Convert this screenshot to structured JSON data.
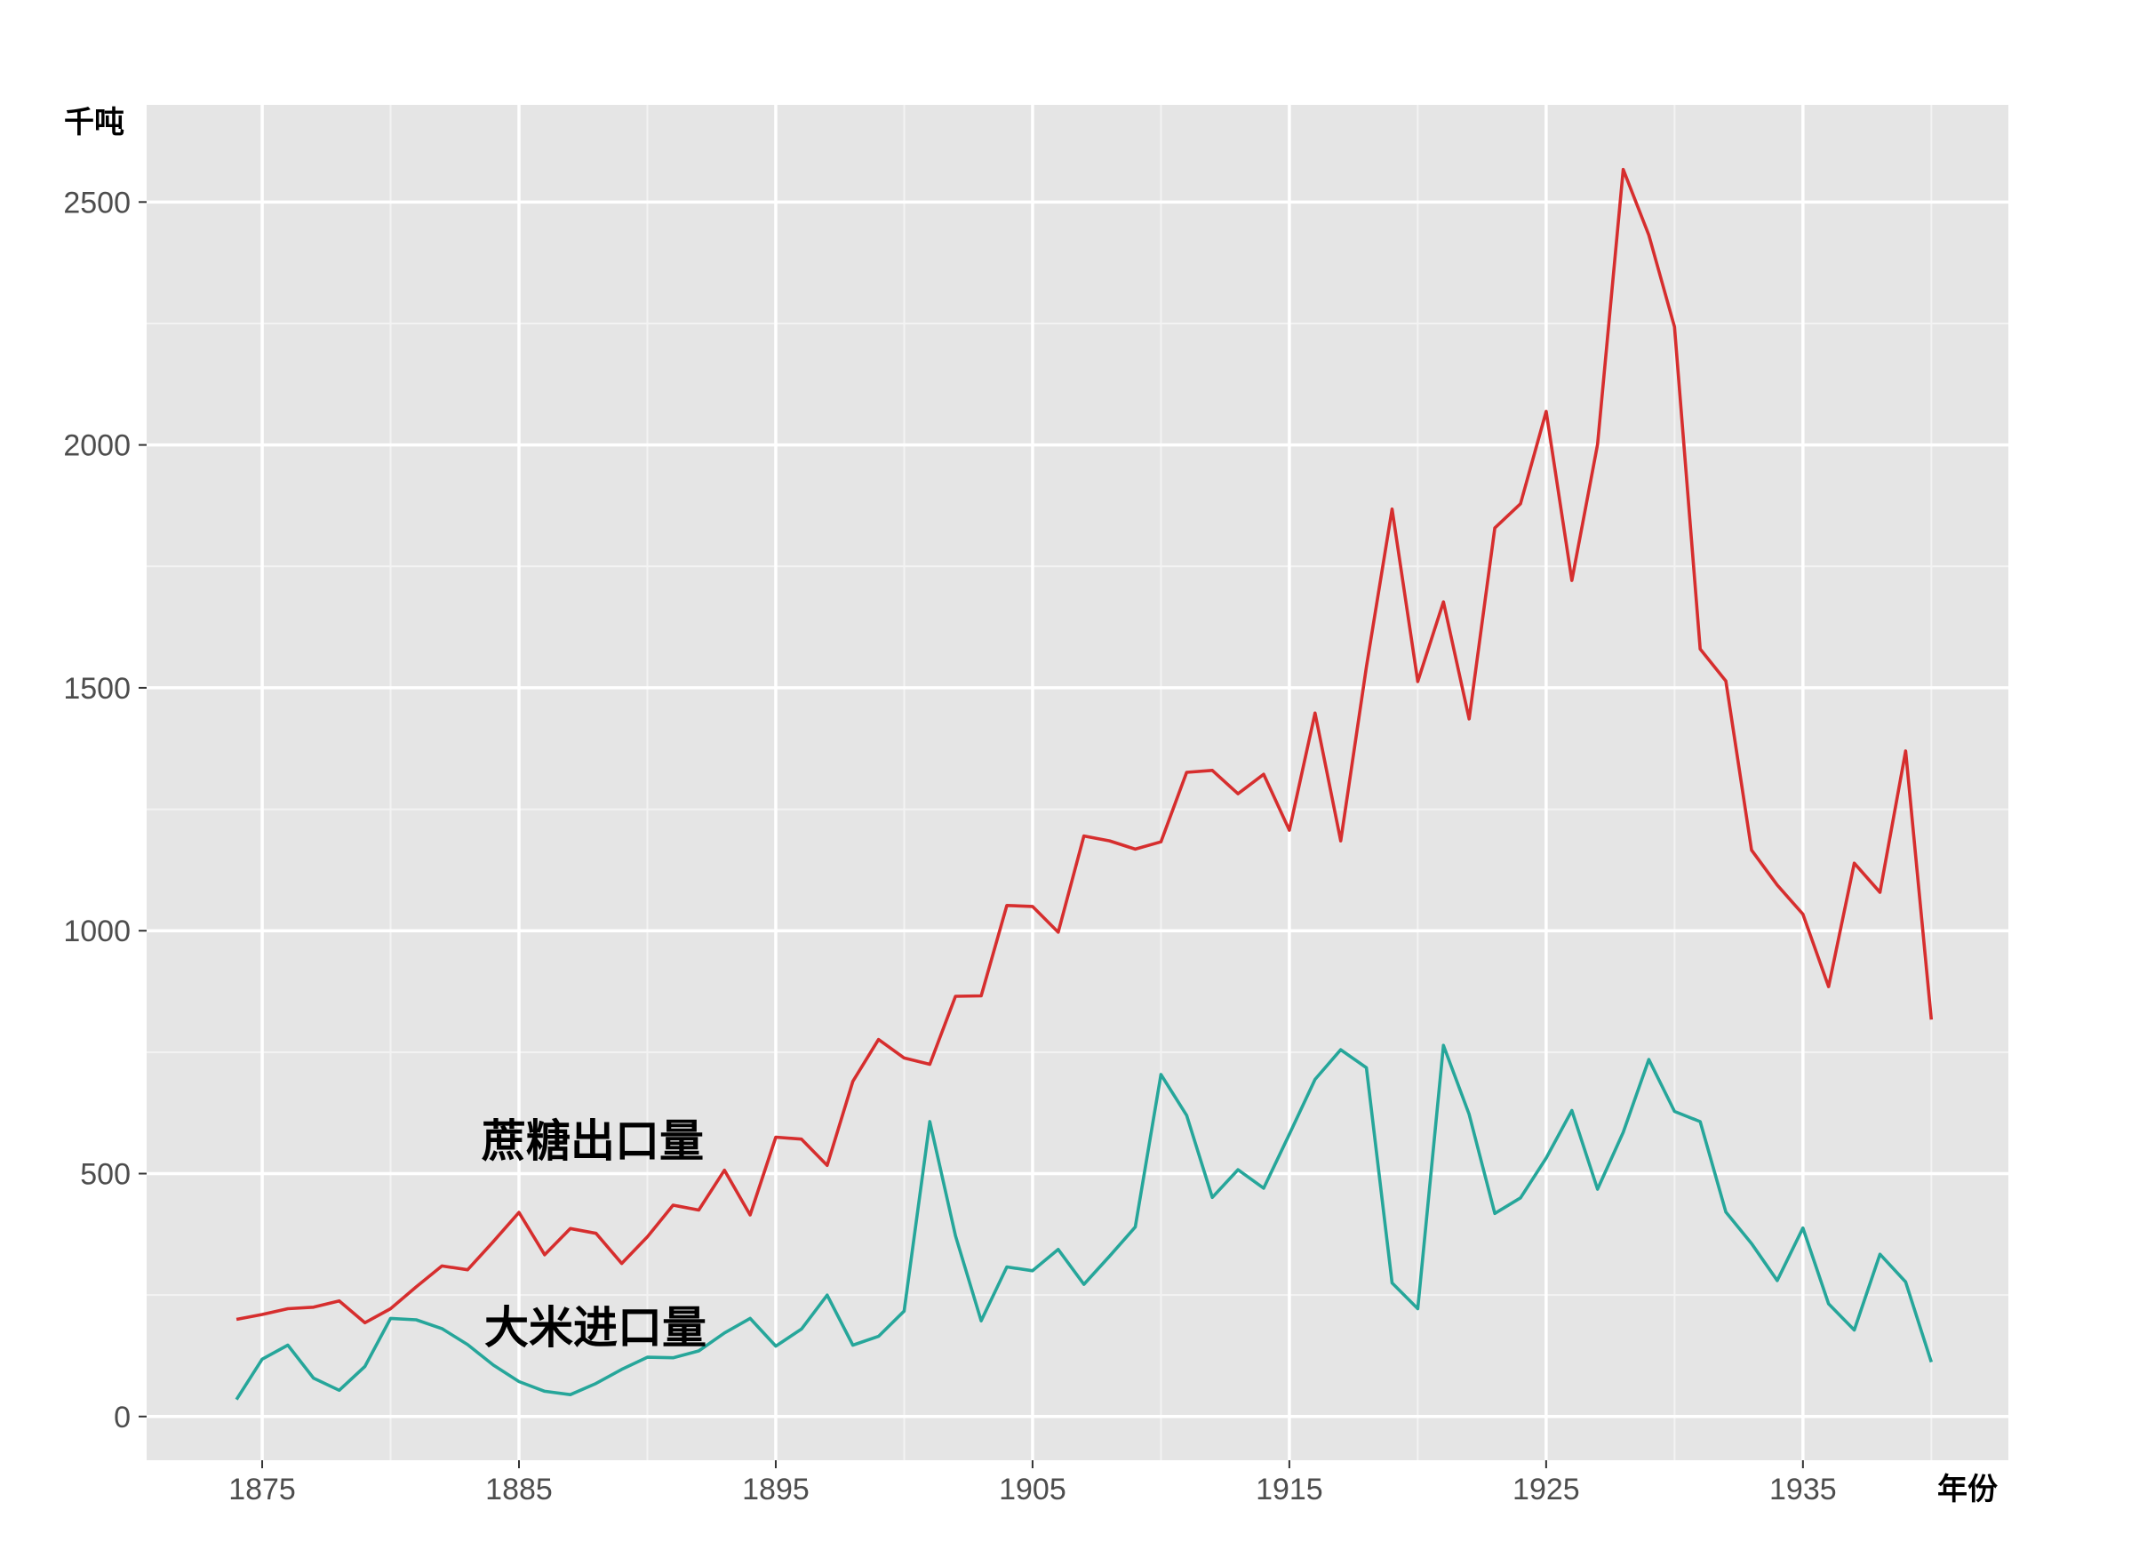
{
  "chart_data": {
    "type": "line",
    "ylabel": "千吨",
    "xlabel": "年份",
    "xlim": [
      1870.5,
      1943.0
    ],
    "ylim": [
      -90,
      2700
    ],
    "x_ticks": [
      1875,
      1885,
      1895,
      1905,
      1915,
      1925,
      1935
    ],
    "y_ticks": [
      0,
      500,
      1000,
      1500,
      2000,
      2500
    ],
    "grid": true,
    "x": [
      1874,
      1875,
      1876,
      1877,
      1878,
      1879,
      1880,
      1881,
      1882,
      1883,
      1884,
      1885,
      1886,
      1887,
      1888,
      1889,
      1890,
      1891,
      1892,
      1893,
      1894,
      1895,
      1896,
      1897,
      1898,
      1899,
      1900,
      1901,
      1902,
      1903,
      1904,
      1905,
      1906,
      1907,
      1908,
      1909,
      1910,
      1911,
      1912,
      1913,
      1914,
      1915,
      1916,
      1917,
      1918,
      1919,
      1920,
      1921,
      1922,
      1923,
      1924,
      1925,
      1926,
      1927,
      1928,
      1929,
      1930,
      1931,
      1932,
      1933,
      1934,
      1935,
      1936,
      1937,
      1938,
      1939,
      1940
    ],
    "series": [
      {
        "name": "蔗糖出口量",
        "color": "#d62e2e",
        "values": [
          200,
          210,
          222,
          225,
          238,
          193,
          222,
          267,
          310,
          302,
          360,
          420,
          333,
          387,
          377,
          315,
          370,
          435,
          425,
          507,
          415,
          575,
          571,
          517,
          690,
          776,
          738,
          725,
          865,
          866,
          1052,
          1050,
          997,
          1195,
          1185,
          1168,
          1183,
          1326,
          1330,
          1282,
          1322,
          1207,
          1448,
          1185,
          1543,
          1868,
          1513,
          1677,
          1436,
          1829,
          1879,
          2069,
          1721,
          2001,
          2567,
          2432,
          2243,
          1580,
          1514,
          1166,
          1094,
          1034,
          885,
          1139,
          1079,
          1370,
          817
        ]
      },
      {
        "name": "大米进口量",
        "color": "#26a69a",
        "values": [
          35,
          118,
          147,
          79,
          54,
          103,
          202,
          199,
          181,
          148,
          106,
          72,
          52,
          45,
          68,
          97,
          122,
          121,
          135,
          172,
          202,
          145,
          180,
          250,
          147,
          165,
          217,
          607,
          372,
          197,
          308,
          300,
          344,
          272,
          330,
          390,
          704,
          620,
          451,
          508,
          470,
          581,
          694,
          755,
          718,
          275,
          222,
          764,
          622,
          418,
          450,
          532,
          630,
          468,
          585,
          735,
          628,
          607,
          421,
          356,
          280,
          388,
          232,
          178,
          334,
          277,
          112
        ]
      }
    ]
  }
}
